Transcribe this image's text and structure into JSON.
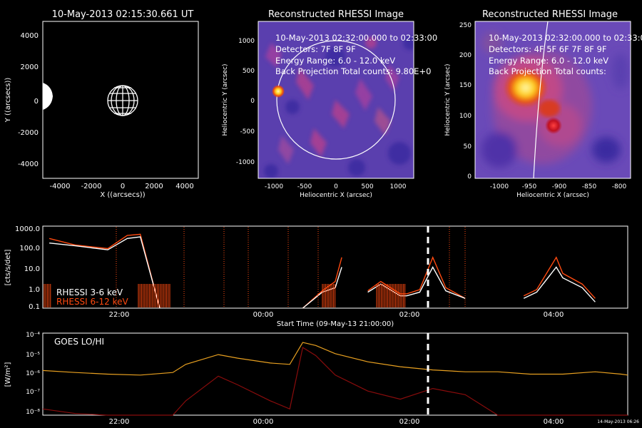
{
  "colors": {
    "background": "#000000",
    "axes": "#ffffff",
    "rhessi_low": "#ffffff",
    "rhessi_high": "#ff4a10",
    "goes_lo": "#e8a020",
    "goes_hi": "#8a0c0c",
    "marker": "#ffffff"
  },
  "panel1": {
    "title": "10-May-2013 02:15:30.661 UT",
    "xlabel": "X ((arcsecs))",
    "ylabel": "Y ((arcsecs))",
    "xticks": [
      "-4000",
      "-2000",
      "0",
      "2000",
      "4000"
    ],
    "yticks": [
      "4000",
      "2000",
      "0",
      "-2000",
      "-4000"
    ]
  },
  "panel2": {
    "title": "Reconstructed RHESSI Image",
    "xlabel": "Heliocentric X (arcsec)",
    "ylabel": "Heliocentric Y (arcsec)",
    "xticks": [
      "-1000",
      "-500",
      "0",
      "500",
      "1000"
    ],
    "yticks": [
      "1000",
      "500",
      "0",
      "-500",
      "-1000"
    ],
    "info": [
      "10-May-2013 02:32:00.000 to 02:33:00",
      "Detectors: 7F 8F 9F",
      "Energy Range: 6.0 - 12.0 keV",
      "Back Projection      Total counts: 9.80E+0"
    ]
  },
  "panel3": {
    "title": "Reconstructed RHESSI Image",
    "xlabel": "Heliocentric X (arcsec)",
    "ylabel": "Heliocentric Y (arcsec)",
    "xticks": [
      "-1000",
      "-950",
      "-900",
      "-850",
      "-800"
    ],
    "yticks": [
      "250",
      "200",
      "150",
      "100",
      "50",
      "0"
    ],
    "info": [
      "10-May-2013 02:32:00.000 to 02:33:00",
      "Detectors: 4F 5F 6F 7F 8F 9F",
      "Energy Range: 6.0 - 12.0 keV",
      "Back Projection      Total counts:"
    ]
  },
  "panel4": {
    "ylabel": "[cts/s/det]",
    "xlabel": "Start Time (09-May-13 21:00:00)",
    "yticks": [
      "1000.0",
      "100.0",
      "10.0",
      "1.0",
      "0.1"
    ],
    "xticks": [
      "22:00",
      "00:00",
      "02:00",
      "04:00"
    ],
    "legend": [
      "RHESSI  3-6 keV",
      "RHESSI 6-12 keV"
    ]
  },
  "panel5": {
    "ylabel": "[W/m²]",
    "label": "GOES LO/HI",
    "xlabel": "Start Time (09-May-13 21:00:00)",
    "yticks": [
      "10⁻⁴",
      "10⁻⁵",
      "10⁻⁶",
      "10⁻⁷",
      "10⁻⁸"
    ],
    "xticks": [
      "22:00",
      "00:00",
      "02:00",
      "04:00"
    ],
    "stamp": "14-May-2013 06:26"
  },
  "chart_data": [
    {
      "type": "image",
      "title": "10-May-2013 02:15:30.661 UT",
      "xlabel": "X ((arcsecs))",
      "ylabel": "Y ((arcsecs))",
      "xlim": [
        -5000,
        5000
      ],
      "ylim": [
        -5000,
        5000
      ]
    },
    {
      "type": "heatmap",
      "title": "Reconstructed RHESSI Image",
      "xlabel": "Heliocentric X (arcsec)",
      "ylabel": "Heliocentric Y (arcsec)",
      "xlim": [
        -1250,
        1250
      ],
      "ylim": [
        -1250,
        1250
      ]
    },
    {
      "type": "heatmap",
      "title": "Reconstructed RHESSI Image",
      "xlabel": "Heliocentric X (arcsec)",
      "ylabel": "Heliocentric Y (arcsec)",
      "xlim": [
        -1050,
        -790
      ],
      "ylim": [
        -5,
        255
      ]
    },
    {
      "type": "line",
      "ylabel": "[cts/s/det]",
      "xlabel": "Start Time (09-May-13 21:00:00)",
      "yscale": "log",
      "ylim": [
        0.1,
        1000
      ],
      "x_hours": [
        21.0,
        21.1,
        21.5,
        22.0,
        22.3,
        22.5,
        22.8,
        23.0,
        23.1,
        23.5,
        23.9,
        24.0,
        24.5,
        25.0,
        25.3,
        25.5,
        25.6,
        25.7,
        25.9,
        26.0,
        26.2,
        26.5,
        26.6,
        26.8,
        27.0,
        27.2,
        27.5,
        28.0,
        28.2,
        28.4,
        28.6,
        28.9,
        29.0,
        29.3,
        29.5,
        29.9,
        30.0
      ],
      "series": [
        {
          "name": "RHESSI  3-6 keV",
          "values": [
            null,
            150,
            110,
            70,
            250,
            300,
            0.1,
            null,
            null,
            null,
            null,
            null,
            null,
            0.1,
            0.6,
            1.0,
            10,
            null,
            null,
            0.6,
            1.5,
            0.4,
            0.4,
            0.6,
            10,
            0.7,
            0.3,
            null,
            null,
            0.3,
            0.6,
            10,
            3,
            1,
            0.2,
            null,
            null
          ]
        },
        {
          "name": "RHESSI 6-12 keV",
          "values": [
            null,
            250,
            120,
            80,
            350,
            400,
            0.1,
            null,
            null,
            null,
            null,
            null,
            null,
            0.1,
            0.7,
            2.0,
            30,
            null,
            null,
            0.7,
            2.0,
            0.5,
            0.5,
            0.8,
            30,
            1.0,
            0.3,
            null,
            null,
            0.4,
            0.8,
            30,
            5,
            1.5,
            0.3,
            null,
            null
          ]
        }
      ]
    },
    {
      "type": "line",
      "ylabel": "[W/m²]",
      "xlabel": "Start Time (09-May-13 21:00:00)",
      "yscale": "log",
      "ylim": [
        1e-08,
        0.0001
      ],
      "x_hours": [
        21.0,
        21.5,
        22.0,
        22.5,
        23.0,
        23.2,
        23.7,
        24.0,
        24.5,
        24.8,
        25.0,
        25.2,
        25.5,
        26.0,
        26.5,
        27.0,
        27.5,
        28.0,
        28.5,
        29.0,
        29.5,
        29.9,
        30.0
      ],
      "series": [
        {
          "name": "GOES LO",
          "values": [
            1.5e-06,
            1.2e-06,
            1e-06,
            9e-07,
            1.2e-06,
            3e-06,
            9e-06,
            6e-06,
            3.5e-06,
            3e-06,
            3.5e-05,
            2.5e-05,
            1e-05,
            4e-06,
            2.3e-06,
            1.6e-06,
            1.3e-06,
            1.3e-06,
            1e-06,
            1e-06,
            1.3e-06,
            1e-06,
            9e-07
          ]
        },
        {
          "name": "GOES HI",
          "values": [
            2e-08,
            1.2e-08,
            1e-08,
            1e-08,
            1e-08,
            5e-08,
            8e-07,
            3e-07,
            5e-08,
            2e-08,
            2e-05,
            8e-06,
            9e-07,
            1.5e-07,
            6e-08,
            2e-07,
            1e-07,
            1e-08,
            1e-08,
            1e-08,
            1e-08,
            1e-08,
            1e-08
          ]
        }
      ]
    }
  ]
}
